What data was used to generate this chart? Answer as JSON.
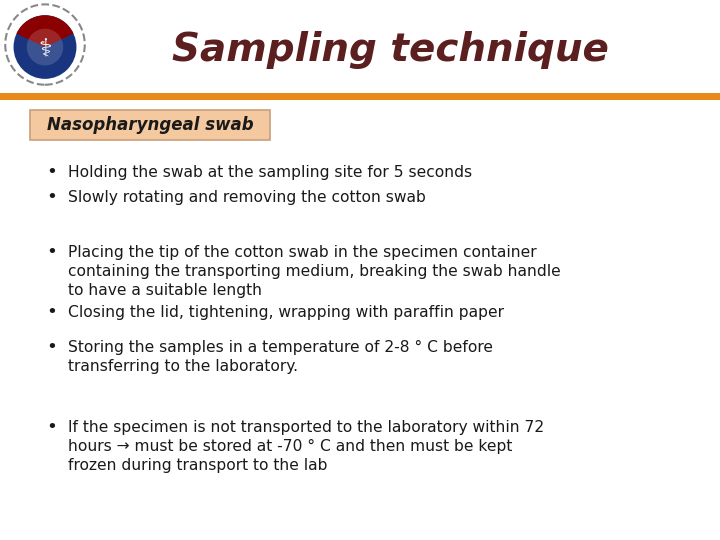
{
  "title": "Sampling technique",
  "title_color": "#5C1F1F",
  "title_fontsize": 28,
  "subtitle_box_text": "Nasopharyngeal swab",
  "subtitle_box_bg": "#F5C9A0",
  "subtitle_box_border": "#C8A07A",
  "subtitle_fontsize": 12,
  "orange_bar_color": "#E8891A",
  "bg_color": "#FFFFFF",
  "bullet_color": "#1A1A1A",
  "bullet_fontsize": 11.2,
  "bullets": [
    "Holding the swab at the sampling site for 5 seconds",
    "Slowly rotating and removing the cotton swab",
    "Placing the tip of the cotton swab in the specimen container\ncontaining the transporting medium, breaking the swab handle\nto have a suitable length",
    "Closing the lid, tightening, wrapping with paraffin paper",
    "Storing the samples in a temperature of 2-8 ° C before\ntransferring to the laboratory.",
    "If the specimen is not transported to the laboratory within 72\nhours → must be stored at -70 ° C and then must be kept\nfrozen during transport to the lab"
  ]
}
